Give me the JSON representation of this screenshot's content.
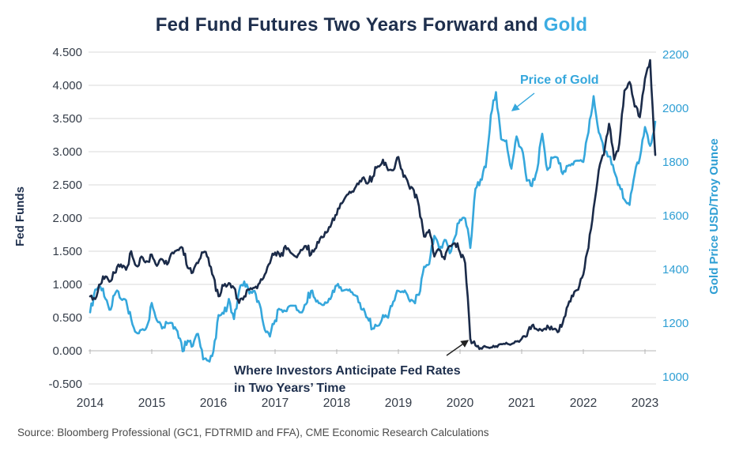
{
  "title": {
    "main": "Fed Fund Futures Two Years Forward and ",
    "accent": "Gold"
  },
  "source": "Source: Bloomberg Professional (GC1, FDTRMID and FFA), CME Economic Research Calculations",
  "colors": {
    "navy": "#1b2b49",
    "blue": "#35a7dc",
    "title_navy": "#1e2f4d",
    "title_blue": "#3cace2",
    "grid": "#d8d8d8",
    "zero_axis": "#b5b5b5",
    "tick_text": "#333b47",
    "right_tick_text": "#2f9fd4",
    "source_text": "#4a4a4a"
  },
  "chart_data": {
    "type": "line",
    "title": "Fed Fund Futures Two Years Forward and Gold",
    "grid": "horizontal-only",
    "x_axis": {
      "tick_labels": [
        "2014",
        "2015",
        "2016",
        "2017",
        "2018",
        "2019",
        "2020",
        "2021",
        "2022",
        "2023"
      ],
      "range_years": [
        2014,
        2023.17
      ]
    },
    "left_axis": {
      "label": "Fed Funds",
      "tick_labels": [
        "4.500",
        "4.000",
        "3.500",
        "3.000",
        "2.500",
        "2.000",
        "1.500",
        "1.000",
        "0.500",
        "0.000",
        "-0.500"
      ],
      "range": [
        -0.5,
        4.5
      ]
    },
    "right_axis": {
      "label": "Gold Price USD/Troy Ounce",
      "tick_labels": [
        "2200",
        "2000",
        "1800",
        "1600",
        "1400",
        "1200",
        "1000"
      ],
      "range": [
        1000,
        2200
      ]
    },
    "sampling": {
      "start_year": 2014,
      "interval_months": 1
    },
    "series": [
      {
        "name": "Where Investors Anticipate Fed Rates in Two Years' Time",
        "axis": "left",
        "color": "#1b2b49",
        "values": [
          0.82,
          0.78,
          1.0,
          1.12,
          1.05,
          1.18,
          1.3,
          1.22,
          1.5,
          1.28,
          1.42,
          1.35,
          1.45,
          1.28,
          1.38,
          1.3,
          1.48,
          1.52,
          1.55,
          1.25,
          1.18,
          1.32,
          1.48,
          1.4,
          1.12,
          0.82,
          0.98,
          1.02,
          0.95,
          0.72,
          0.82,
          0.92,
          0.95,
          1.02,
          1.15,
          1.32,
          1.48,
          1.42,
          1.58,
          1.48,
          1.42,
          1.52,
          1.58,
          1.45,
          1.55,
          1.72,
          1.78,
          1.92,
          2.05,
          2.22,
          2.35,
          2.4,
          2.52,
          2.6,
          2.52,
          2.62,
          2.78,
          2.88,
          2.72,
          2.72,
          2.92,
          2.62,
          2.5,
          2.42,
          2.18,
          1.72,
          1.82,
          1.42,
          1.52,
          1.38,
          1.58,
          1.62,
          1.48,
          1.32,
          0.18,
          0.08,
          0.04,
          0.06,
          0.05,
          0.07,
          0.1,
          0.12,
          0.1,
          0.14,
          0.18,
          0.22,
          0.38,
          0.32,
          0.3,
          0.38,
          0.32,
          0.28,
          0.42,
          0.68,
          0.82,
          0.92,
          1.15,
          1.55,
          2.15,
          2.72,
          2.95,
          3.42,
          2.88,
          3.12,
          3.92,
          4.05,
          3.68,
          3.52,
          4.1,
          4.38,
          2.95
        ]
      },
      {
        "name": "Price of Gold",
        "axis": "right",
        "color": "#35a7dc",
        "values": [
          1240,
          1325,
          1335,
          1290,
          1250,
          1315,
          1290,
          1285,
          1215,
          1165,
          1175,
          1185,
          1275,
          1210,
          1180,
          1200,
          1200,
          1170,
          1095,
          1135,
          1115,
          1160,
          1065,
          1060,
          1095,
          1230,
          1235,
          1290,
          1215,
          1320,
          1355,
          1310,
          1320,
          1270,
          1175,
          1150,
          1210,
          1250,
          1245,
          1265,
          1265,
          1240,
          1270,
          1320,
          1280,
          1270,
          1275,
          1300,
          1340,
          1320,
          1325,
          1315,
          1300,
          1250,
          1220,
          1180,
          1190,
          1230,
          1220,
          1280,
          1320,
          1315,
          1290,
          1280,
          1305,
          1410,
          1420,
          1525,
          1470,
          1510,
          1460,
          1520,
          1585,
          1590,
          1480,
          1700,
          1735,
          1780,
          1975,
          2060,
          1885,
          1880,
          1775,
          1895,
          1850,
          1730,
          1710,
          1770,
          1905,
          1770,
          1815,
          1815,
          1755,
          1785,
          1790,
          1805,
          1800,
          1910,
          2045,
          1910,
          1840,
          1820,
          1765,
          1715,
          1660,
          1640,
          1755,
          1815,
          1930,
          1860,
          1950
        ]
      }
    ],
    "annotations": [
      {
        "id": "gold",
        "text": "Price of Gold"
      },
      {
        "id": "fed",
        "text_line1": "Where Investors Anticipate Fed Rates",
        "text_line2": "in Two Years’ Time"
      }
    ]
  }
}
